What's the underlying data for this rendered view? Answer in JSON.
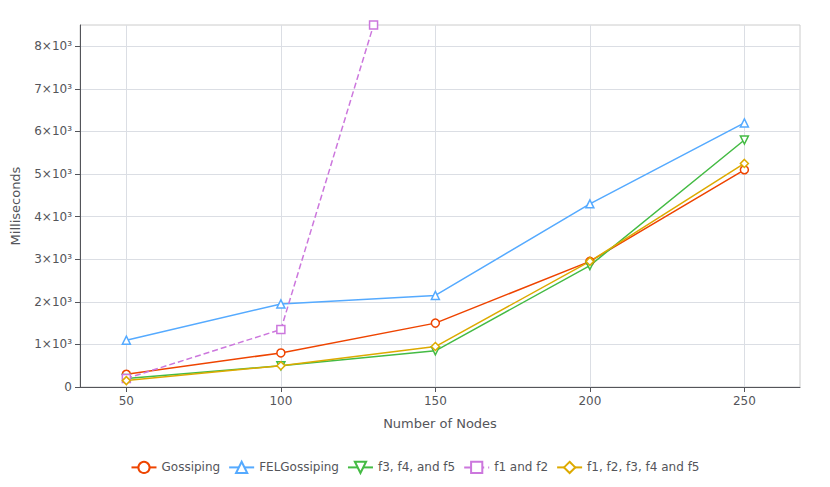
{
  "chart_data": {
    "type": "line",
    "xlabel": "Number of Nodes",
    "ylabel": "Milliseconds",
    "x": [
      50,
      100,
      150,
      200,
      250
    ],
    "xlim": [
      35,
      268
    ],
    "xticks": [
      50,
      100,
      150,
      200,
      250
    ],
    "ylim": [
      0,
      8500
    ],
    "yticks": [
      0,
      {
        "value": 1000,
        "label": "1×10³"
      },
      {
        "value": 2000,
        "label": "2×10³"
      },
      {
        "value": 3000,
        "label": "3×10³"
      },
      {
        "value": 4000,
        "label": "4×10³"
      },
      {
        "value": 5000,
        "label": "5×10³"
      },
      {
        "value": 6000,
        "label": "6×10³"
      },
      {
        "value": 7000,
        "label": "7×10³"
      },
      {
        "value": 8000,
        "label": "8×10³"
      }
    ],
    "grid": true,
    "legend": "bottom",
    "series": [
      {
        "name": "Gossiping",
        "color": "#EE4400",
        "marker": "circle",
        "line_style": "solid",
        "values": [
          300,
          800,
          1500,
          2950,
          5100
        ]
      },
      {
        "name": "FELGossiping",
        "color": "#55AAFF",
        "marker": "triangle",
        "line_style": "solid",
        "values": [
          1100,
          1950,
          2150,
          4300,
          6200
        ]
      },
      {
        "name": "f3, f4, and f5",
        "color": "#44BB44",
        "marker": "triangle-down",
        "line_style": "solid",
        "values": [
          200,
          500,
          850,
          2850,
          5800
        ]
      },
      {
        "name": "f1 and f2",
        "color": "#CC77DD",
        "marker": "square",
        "line_style": "dashed",
        "x": [
          50,
          100,
          130
        ],
        "values": [
          200,
          1350,
          8500
        ]
      },
      {
        "name": "f1, f2, f3, f4 and f5",
        "color": "#DDAA00",
        "marker": "diamond",
        "line_style": "solid",
        "values": [
          150,
          500,
          950,
          2950,
          5250
        ]
      }
    ]
  }
}
